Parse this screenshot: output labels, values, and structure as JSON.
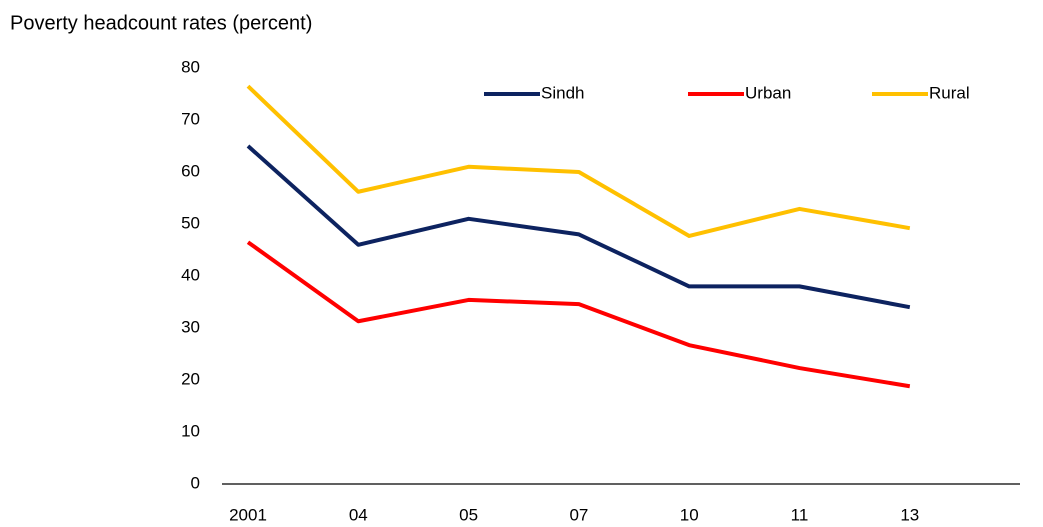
{
  "chart_data": {
    "type": "line",
    "title": "Poverty headcount rates (percent)",
    "categories": [
      "2001",
      "04",
      "05",
      "07",
      "10",
      "11",
      "13"
    ],
    "series": [
      {
        "name": "Sindh",
        "color": "#0d2360",
        "values": [
          65,
          46,
          51,
          48,
          38,
          38,
          34
        ]
      },
      {
        "name": "Urban",
        "color": "#ff0000",
        "values": [
          46.5,
          31.3,
          35.4,
          34.6,
          26.7,
          22.3,
          18.8
        ]
      },
      {
        "name": "Rural",
        "color": "#ffc000",
        "values": [
          76.5,
          56.2,
          61,
          60,
          47.7,
          52.9,
          49.2
        ]
      }
    ],
    "ylim": [
      0,
      80
    ],
    "yticks": [
      0,
      10,
      20,
      30,
      40,
      50,
      60,
      70,
      80
    ],
    "grid": false,
    "legend": "top"
  }
}
